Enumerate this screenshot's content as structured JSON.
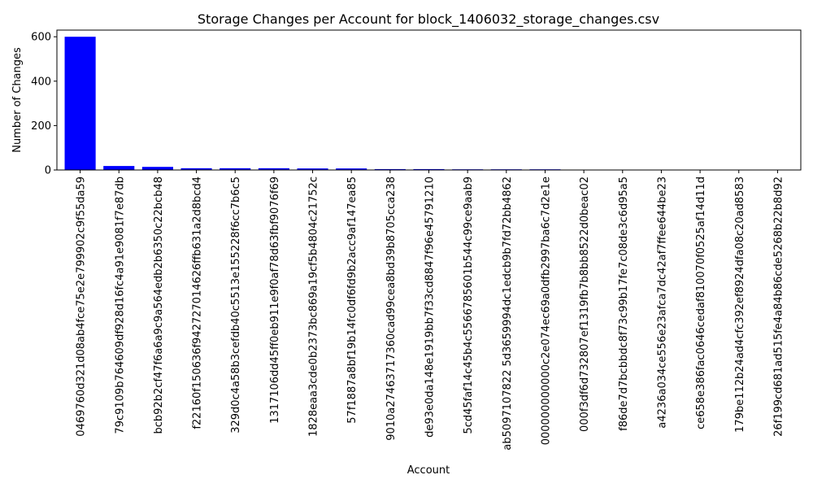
{
  "chart_data": {
    "type": "bar",
    "title": "Storage Changes per Account for block_1406032_storage_changes.csv",
    "xlabel": "Account",
    "ylabel": "Number of Changes",
    "ylim": [
      0,
      630
    ],
    "yticks": [
      0,
      200,
      400,
      600
    ],
    "grid": false,
    "bar_color": "#0000ff",
    "categories": [
      "0469760d321d08ab4fce75e2e799902c9f55da59",
      "79c9109b764609df928d16fc4a91e9081f7e87db",
      "bcb92b2cf47f6a6a9c9a564edb2b6350c22bcb48",
      "f22160f150636f942727014626ffb631a2d8bcd4",
      "329d0c4a58b3cefdb40c5513e155228f6cc7b6c5",
      "1317106dd45ff0eb911e9f0af78d63fbf9076f69",
      "1828eaa3cde0b2373bc869a19cf5b4804c21752c",
      "57f1887a8bf19b14fc0df6fd9b2acc9af147ea85",
      "9010a27463717360cad99cea8bd39b8705cca238",
      "de93e0da148e1919bb7f33cd8847f96e45791210",
      "5cd45faf14c45b4c5566785601b544c99ce9aab9",
      "ab5097107822 5d3659994dc1edcb9b7fd72bb4862",
      "000000000000c2e074ec69a0dfb2997ba6c7d2e1e",
      "000f3df6d732807ef1319fb7b8bb8522d0beac02",
      "f86de7d7bcbbdc8f73c99b17fe7c08de3c6d95a5",
      "a4236a034ce556e23afca7dc42af7ffee644be23",
      "ce658e386fac0646cedaf810070f0525af14d11d",
      "179be112b24ad4cfc392ef8924dfa08c20ad8583",
      "26f199cd681ad515fe4a84b86cde5268b22b8d92"
    ],
    "values": [
      600,
      18,
      14,
      8,
      8,
      8,
      7,
      7,
      4,
      4,
      3,
      3,
      3,
      1,
      1,
      1,
      1,
      1,
      1
    ]
  }
}
